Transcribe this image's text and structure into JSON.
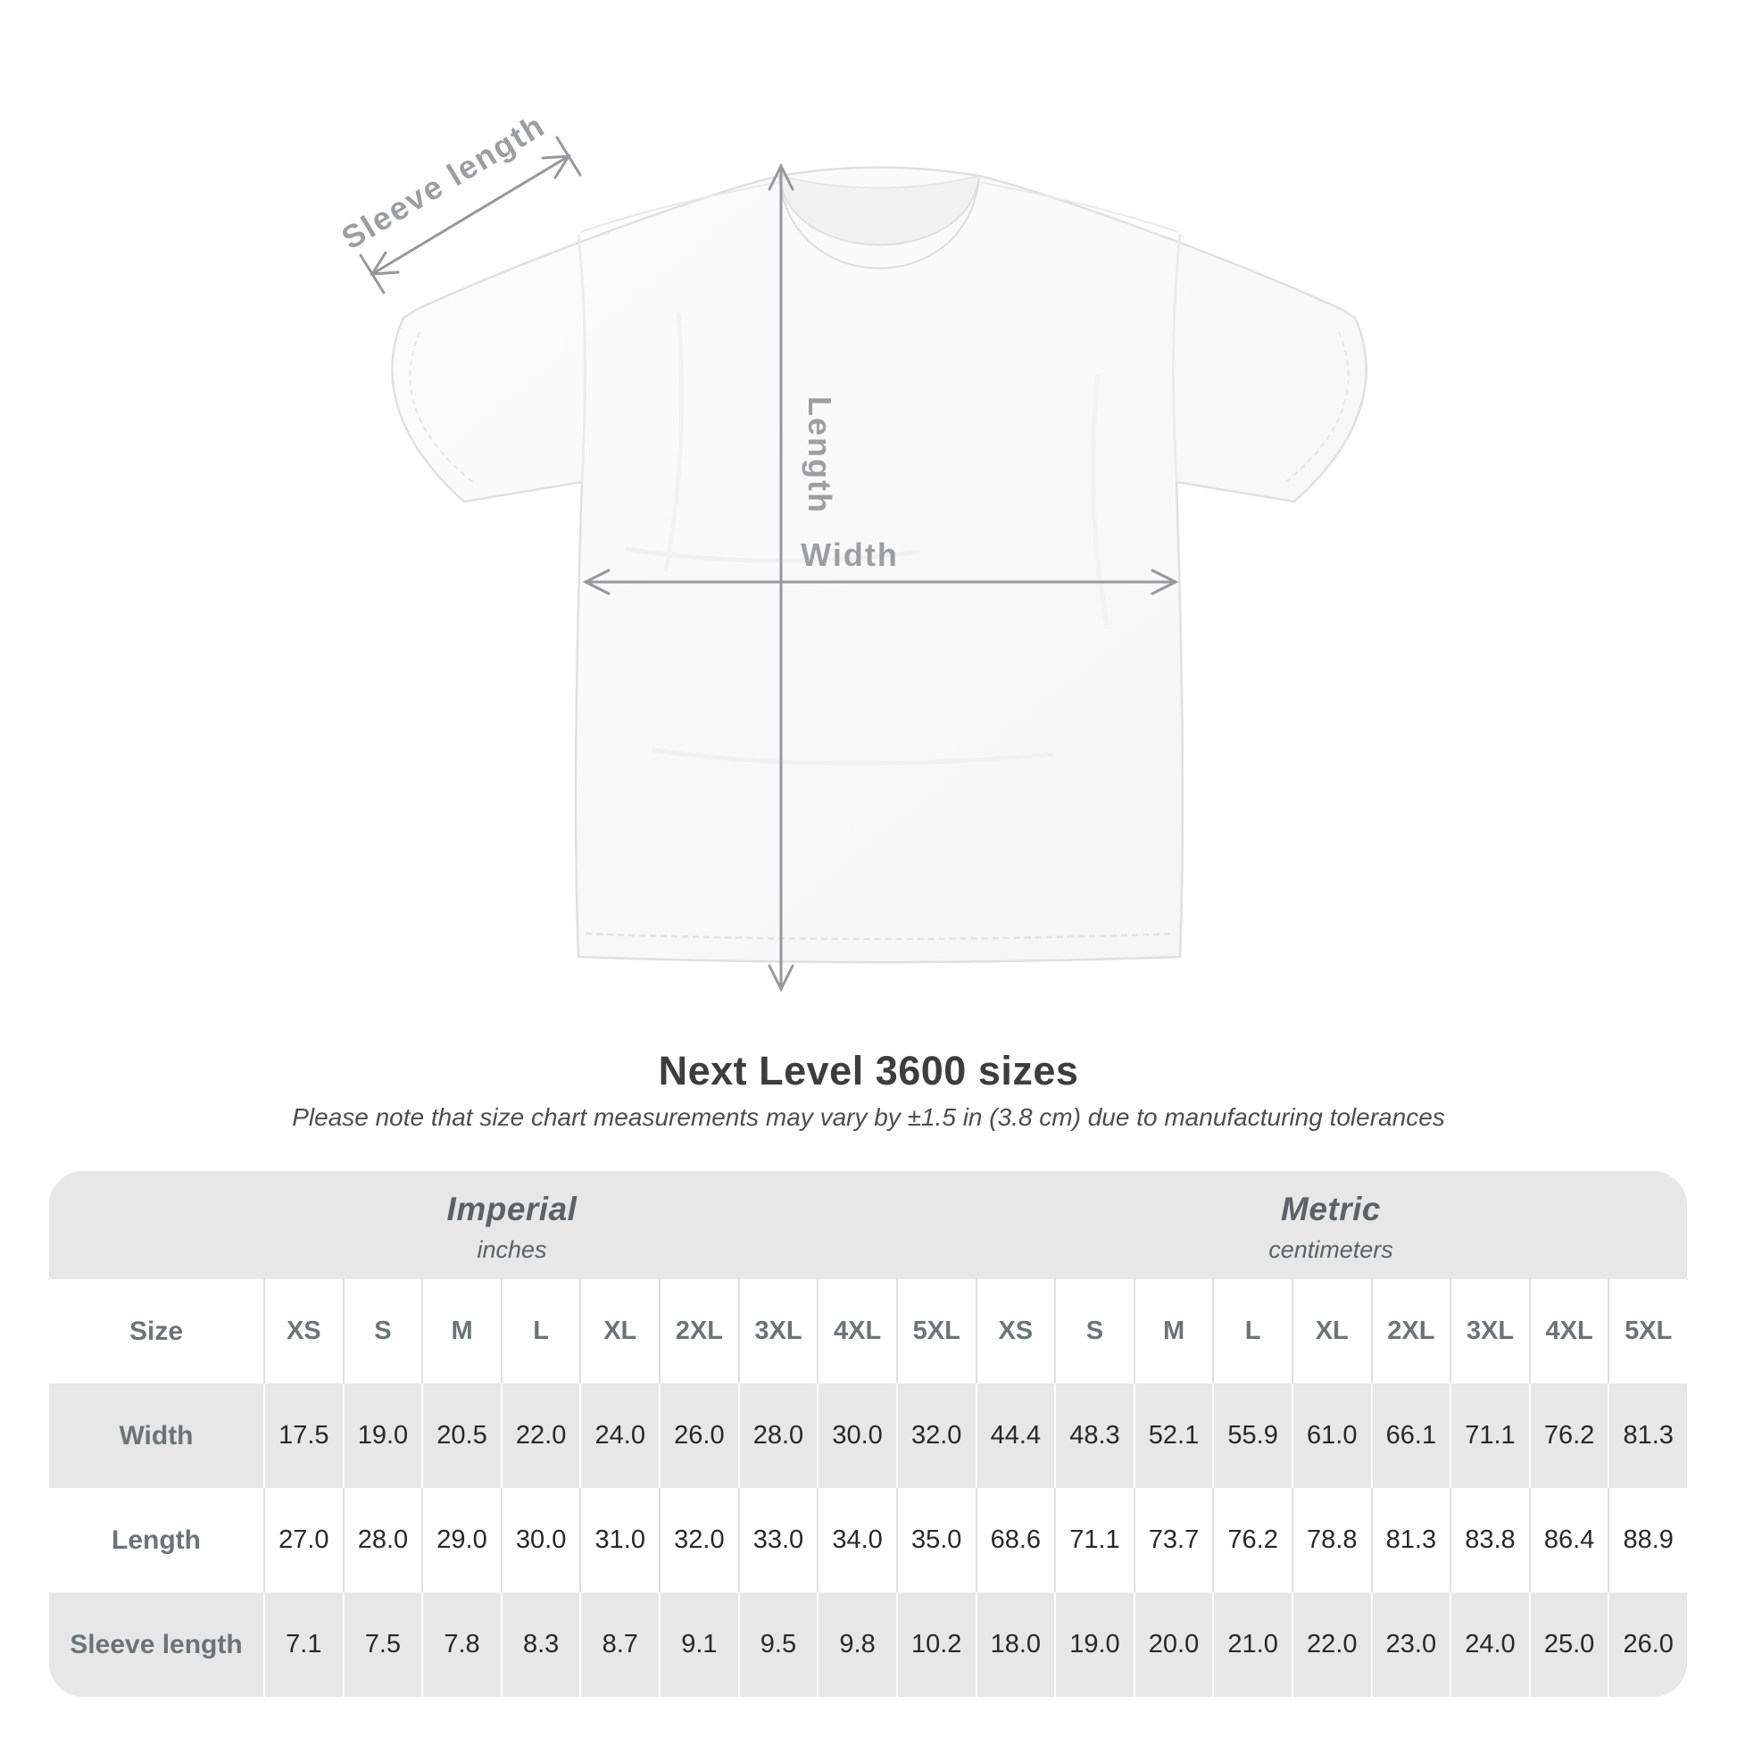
{
  "figure": {
    "labels": {
      "sleeve": "Sleeve length",
      "length": "Length",
      "width": "Width"
    }
  },
  "title": "Next Level 3600 sizes",
  "subtitle": "Please note that size chart measurements may vary by ±1.5 in (3.8 cm) due to manufacturing tolerances",
  "table": {
    "unit_groups": [
      {
        "name": "Imperial",
        "unit": "inches"
      },
      {
        "name": "Metric",
        "unit": "centimeters"
      }
    ],
    "size_header": "Size",
    "sizes": [
      "XS",
      "S",
      "M",
      "L",
      "XL",
      "2XL",
      "3XL",
      "4XL",
      "5XL"
    ],
    "rows": [
      {
        "label": "Width",
        "imperial": [
          "17.5",
          "19.0",
          "20.5",
          "22.0",
          "24.0",
          "26.0",
          "28.0",
          "30.0",
          "32.0"
        ],
        "metric": [
          "44.4",
          "48.3",
          "52.1",
          "55.9",
          "61.0",
          "66.1",
          "71.1",
          "76.2",
          "81.3"
        ]
      },
      {
        "label": "Length",
        "imperial": [
          "27.0",
          "28.0",
          "29.0",
          "30.0",
          "31.0",
          "32.0",
          "33.0",
          "34.0",
          "35.0"
        ],
        "metric": [
          "68.6",
          "71.1",
          "73.7",
          "76.2",
          "78.8",
          "81.3",
          "83.8",
          "86.4",
          "88.9"
        ]
      },
      {
        "label": "Sleeve length",
        "imperial": [
          "7.1",
          "7.5",
          "7.8",
          "8.3",
          "8.7",
          "9.1",
          "9.5",
          "9.8",
          "10.2"
        ],
        "metric": [
          "18.0",
          "19.0",
          "20.0",
          "21.0",
          "22.0",
          "23.0",
          "24.0",
          "25.0",
          "26.0"
        ]
      }
    ]
  },
  "colors": {
    "card_gray": "#e7e7e7",
    "annotation_gray": "#96989a",
    "label_gray": "#6e7376",
    "title_gray": "#3d3d3d"
  }
}
